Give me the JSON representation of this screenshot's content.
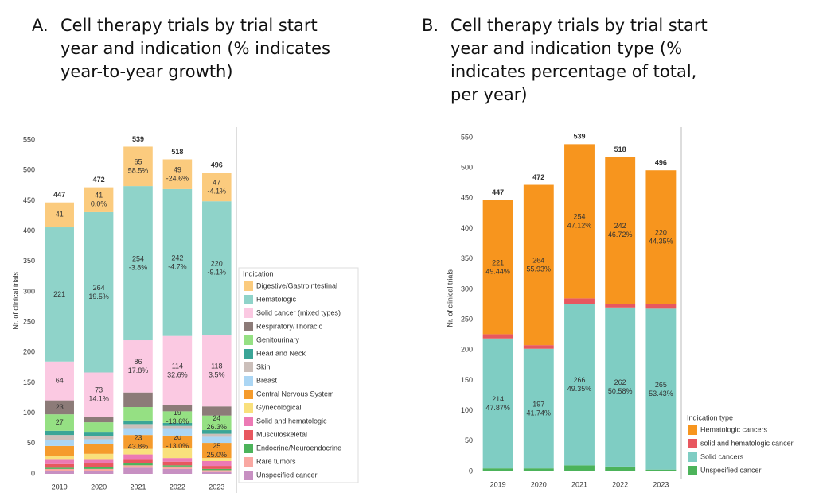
{
  "chart_data": [
    {
      "type": "bar",
      "stacked": true,
      "panel": "A.",
      "title": "Cell therapy trials by trial start year and indication (% indicates year-to-year growth)",
      "y_label": "Nr. of clinical trials",
      "legend_title": "Indication",
      "legend": "right",
      "grid": false,
      "categories": [
        "2019",
        "2020",
        "2021",
        "2022",
        "2023"
      ],
      "totals": [
        447,
        472,
        539,
        518,
        496
      ],
      "ylim": [
        0,
        570
      ],
      "yticks": [
        0,
        50,
        100,
        150,
        200,
        250,
        300,
        350,
        400,
        450,
        500,
        550
      ],
      "series": [
        {
          "name": "Digestive/Gastrointestinal",
          "color": "#fbcb7e",
          "values": [
            41,
            41,
            65,
            49,
            47
          ],
          "labels_shown": [
            true,
            true,
            true,
            true,
            true
          ],
          "growth_labels": [
            null,
            "0.0%",
            "58.5%",
            "-24.6%",
            "-4.1%"
          ]
        },
        {
          "name": "Hematologic",
          "color": "#8fd3c9",
          "values": [
            221,
            264,
            254,
            242,
            220
          ],
          "labels_shown": [
            true,
            true,
            true,
            true,
            true
          ],
          "growth_labels": [
            null,
            "19.5%",
            "-3.8%",
            "-4.7%",
            "-9.1%"
          ]
        },
        {
          "name": "Solid cancer (mixed types)",
          "color": "#fbc9e2",
          "values": [
            64,
            73,
            86,
            114,
            118
          ],
          "labels_shown": [
            true,
            true,
            true,
            true,
            true
          ],
          "growth_labels": [
            null,
            "14.1%",
            "17.8%",
            "32.6%",
            "3.5%"
          ]
        },
        {
          "name": "Respiratory/Thoracic",
          "color": "#8c7b78",
          "values": [
            23,
            9,
            24,
            10,
            15
          ],
          "labels_shown": [
            true,
            false,
            false,
            false,
            false
          ],
          "growth_labels": [
            null,
            null,
            null,
            null,
            null
          ]
        },
        {
          "name": "Genitourinary",
          "color": "#95e083",
          "values": [
            27,
            17,
            22,
            19,
            24
          ],
          "labels_shown": [
            true,
            false,
            false,
            true,
            true
          ],
          "growth_labels": [
            null,
            null,
            null,
            "-13.6%",
            "26.3%"
          ]
        },
        {
          "name": "Head and Neck",
          "color": "#3aa597",
          "values": [
            7,
            6,
            6,
            5,
            6
          ],
          "labels_shown": [
            false,
            false,
            false,
            false,
            false
          ],
          "growth_labels": [
            null,
            null,
            null,
            null,
            null
          ]
        },
        {
          "name": "Skin",
          "color": "#cbbfba",
          "values": [
            8,
            5,
            8,
            5,
            5
          ],
          "labels_shown": [
            false,
            false,
            false,
            false,
            false
          ],
          "growth_labels": [
            null,
            null,
            null,
            null,
            null
          ]
        },
        {
          "name": "Breast",
          "color": "#abd6f4",
          "values": [
            10,
            8,
            10,
            11,
            10
          ],
          "labels_shown": [
            false,
            false,
            false,
            false,
            false
          ],
          "growth_labels": [
            null,
            null,
            null,
            null,
            null
          ]
        },
        {
          "name": "Central Nervous System",
          "color": "#f59b2c",
          "values": [
            16,
            16,
            23,
            20,
            25
          ],
          "labels_shown": [
            false,
            false,
            true,
            true,
            true
          ],
          "growth_labels": [
            null,
            null,
            "43.8%",
            "-13.0%",
            "25.0%"
          ]
        },
        {
          "name": "Gynecological",
          "color": "#f9e07c",
          "values": [
            7,
            10,
            9,
            17,
            5
          ],
          "labels_shown": [
            false,
            false,
            false,
            false,
            false
          ],
          "growth_labels": [
            null,
            null,
            null,
            null,
            null
          ]
        },
        {
          "name": "Solid and hematologic",
          "color": "#ec7ab5",
          "values": [
            7,
            6,
            9,
            6,
            8
          ],
          "labels_shown": [
            false,
            false,
            false,
            false,
            false
          ],
          "growth_labels": [
            null,
            null,
            null,
            null,
            null
          ]
        },
        {
          "name": "Musculoskeletal",
          "color": "#e8575f",
          "values": [
            6,
            6,
            6,
            6,
            5
          ],
          "labels_shown": [
            false,
            false,
            false,
            false,
            false
          ],
          "growth_labels": [
            null,
            null,
            null,
            null,
            null
          ]
        },
        {
          "name": "Endocrine/Neuroendocrine",
          "color": "#4cb35a",
          "values": [
            2,
            3,
            3,
            2,
            2
          ],
          "labels_shown": [
            false,
            false,
            false,
            false,
            false
          ],
          "growth_labels": [
            null,
            null,
            null,
            null,
            null
          ]
        },
        {
          "name": "Rare tumors",
          "color": "#f9a8a2",
          "values": [
            3,
            3,
            4,
            4,
            3
          ],
          "labels_shown": [
            false,
            false,
            false,
            false,
            false
          ],
          "growth_labels": [
            null,
            null,
            null,
            null,
            null
          ]
        },
        {
          "name": "Unspecified cancer",
          "color": "#c790c2",
          "values": [
            5,
            5,
            10,
            8,
            3
          ],
          "labels_shown": [
            false,
            false,
            false,
            false,
            false
          ],
          "growth_labels": [
            null,
            null,
            null,
            null,
            null
          ]
        }
      ]
    },
    {
      "type": "bar",
      "stacked": true,
      "panel": "B.",
      "title": "Cell therapy trials by trial start year and indication type (% indicates percentage of total, per year)",
      "y_label": "Nr. of clinical trials",
      "legend_title": "Indication type",
      "legend": "right",
      "grid": false,
      "categories": [
        "2019",
        "2020",
        "2021",
        "2022",
        "2023"
      ],
      "totals": [
        447,
        472,
        539,
        518,
        496
      ],
      "ylim": [
        0,
        570
      ],
      "yticks": [
        0,
        50,
        100,
        150,
        200,
        250,
        300,
        350,
        400,
        450,
        500,
        550
      ],
      "series": [
        {
          "name": "Hematologic cancers",
          "color": "#f7951e",
          "values": [
            221,
            264,
            254,
            242,
            220
          ],
          "labels_shown": [
            true,
            true,
            true,
            true,
            true
          ],
          "share_labels": [
            "49.44%",
            "55.93%",
            "47.12%",
            "46.72%",
            "44.35%"
          ]
        },
        {
          "name": "solid and hematologic cancer",
          "color": "#e8575f",
          "values": [
            7,
            6,
            9,
            6,
            8
          ],
          "labels_shown": [
            false,
            false,
            false,
            false,
            false
          ],
          "share_labels": [
            null,
            null,
            null,
            null,
            null
          ]
        },
        {
          "name": "Solid cancers",
          "color": "#7fcdc3",
          "values": [
            214,
            197,
            266,
            262,
            265
          ],
          "labels_shown": [
            true,
            true,
            true,
            true,
            true
          ],
          "share_labels": [
            "47.87%",
            "41.74%",
            "49.35%",
            "50.58%",
            "53.43%"
          ]
        },
        {
          "name": "Unspecified cancer",
          "color": "#4cb35a",
          "values": [
            5,
            5,
            10,
            8,
            3
          ],
          "labels_shown": [
            false,
            false,
            false,
            false,
            false
          ],
          "share_labels": [
            null,
            null,
            null,
            null,
            null
          ]
        }
      ]
    }
  ]
}
